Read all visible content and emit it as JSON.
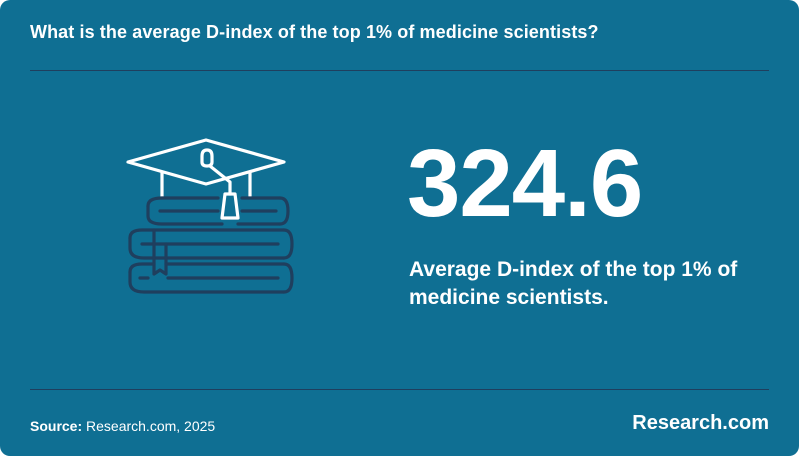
{
  "card": {
    "title": "What is the average D-index of the top 1% of medicine scientists?",
    "stat": {
      "value": "324.6",
      "description": "Average D-index of the top 1% of medicine scientists."
    },
    "icon": "graduation-cap-on-books-icon"
  },
  "footer": {
    "source_label": "Source:",
    "source_text": "Research.com, 2025",
    "brand": "Research.com"
  },
  "colors": {
    "background": "#0f6f93",
    "line": "#1f3f5e",
    "text": "#ffffff"
  }
}
